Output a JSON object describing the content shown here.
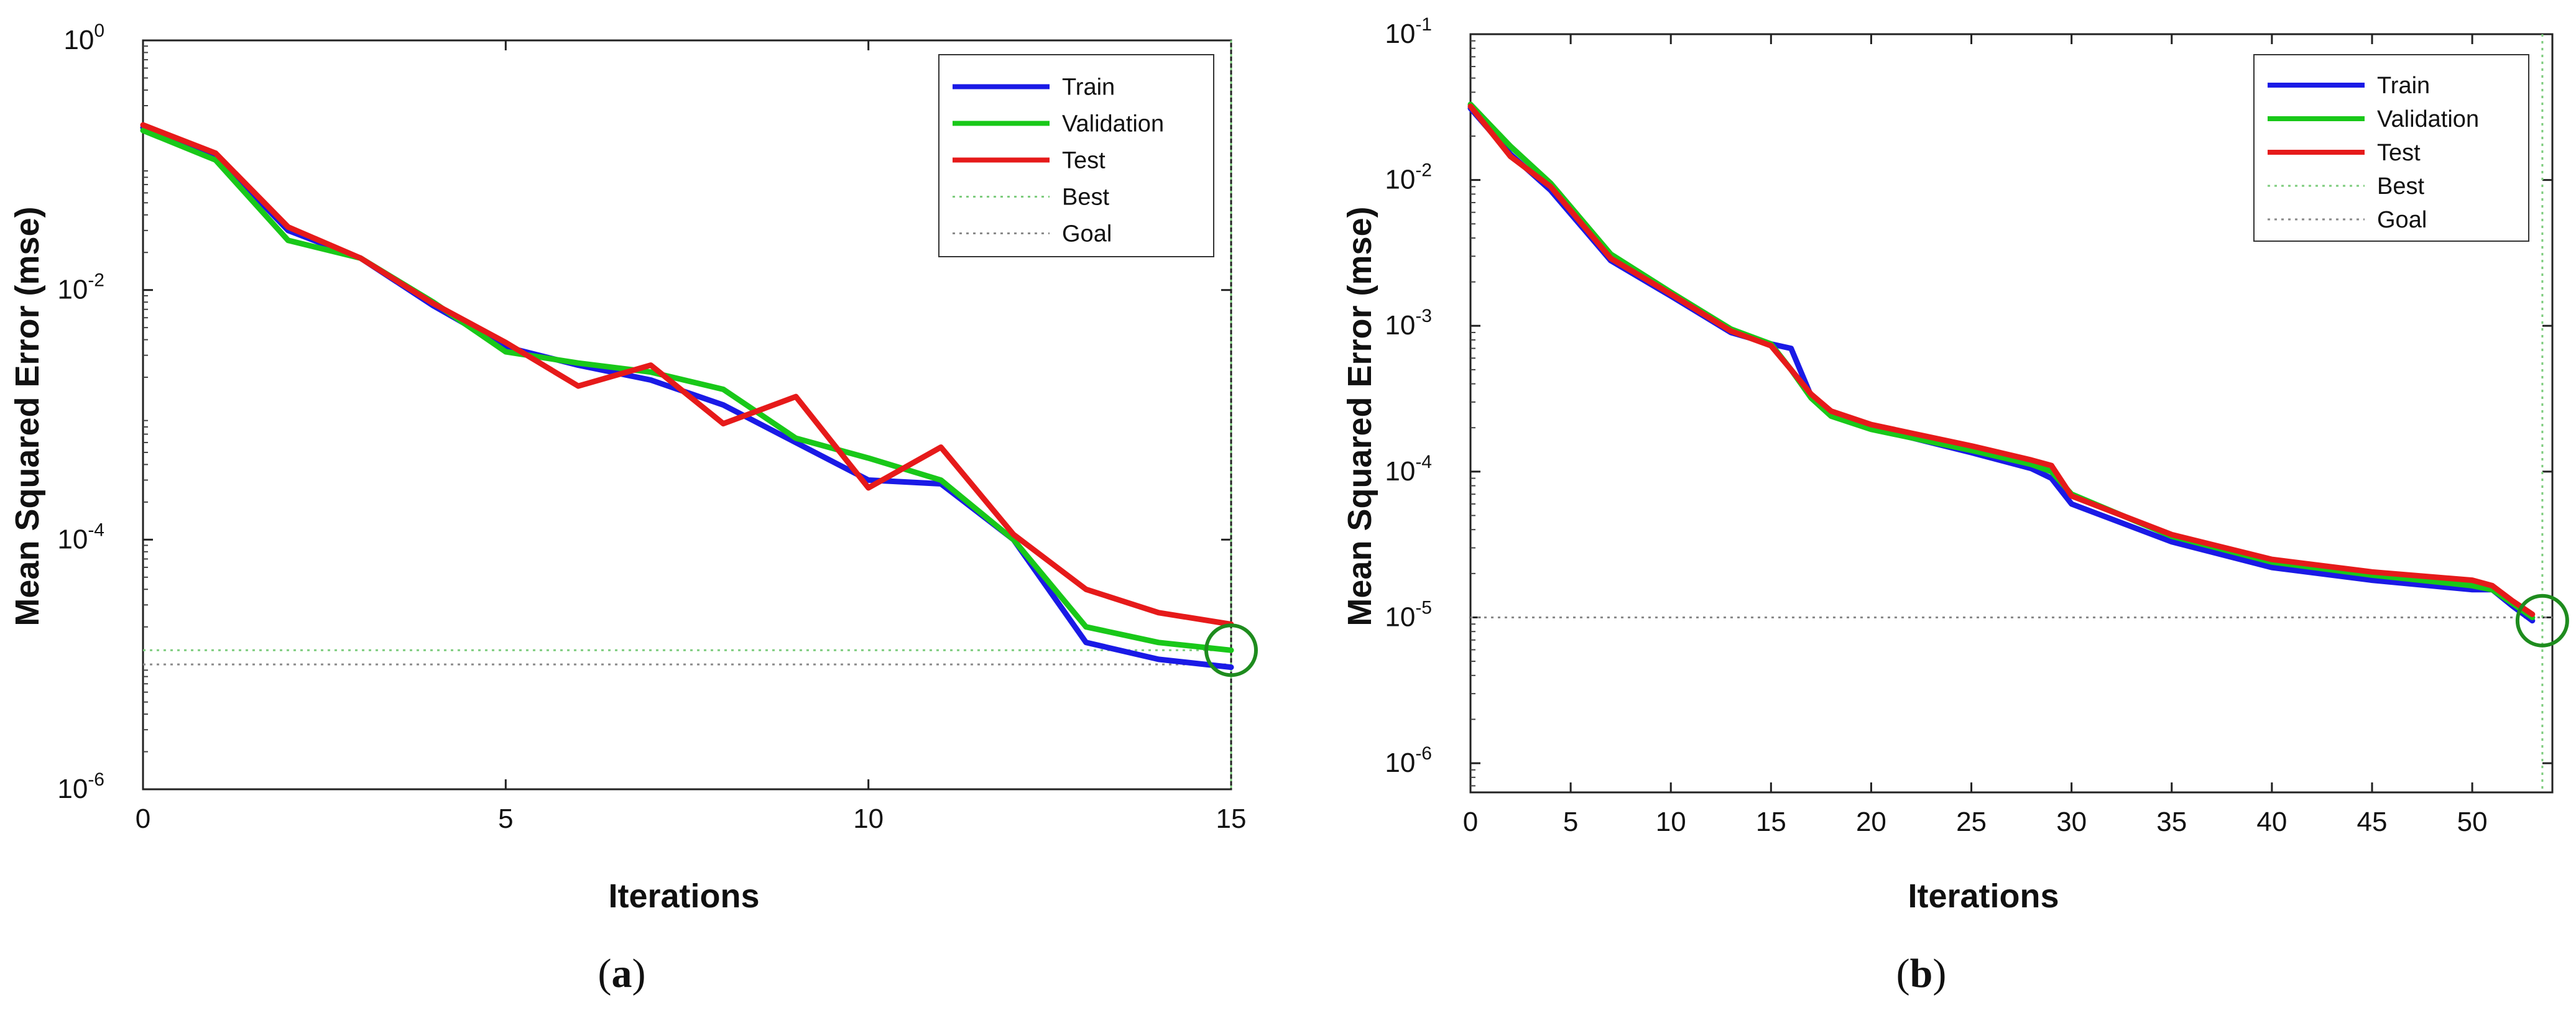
{
  "chart_data": [
    {
      "type": "line",
      "id": "a",
      "caption": {
        "open": "(",
        "letter": "a",
        "close": ")"
      },
      "xlabel": "Iterations",
      "ylabel": "Mean Squared Error  (mse)",
      "yscale": "log",
      "xlim": [
        0,
        15
      ],
      "ylim_exp": [
        -6,
        0
      ],
      "xticks": [
        0,
        5,
        10,
        15
      ],
      "yticks": [
        {
          "base": "10",
          "exp": "0",
          "value_exp": 0
        },
        {
          "base": "10",
          "exp": "-2",
          "value_exp": -2
        },
        {
          "base": "10",
          "exp": "-4",
          "value_exp": -4
        },
        {
          "base": "10",
          "exp": "-6",
          "value_exp": -6
        }
      ],
      "series": [
        {
          "name": "Train",
          "color": "#1a1ae6",
          "x": [
            0,
            1,
            2,
            3,
            4,
            5,
            6,
            7,
            8,
            9,
            10,
            11,
            12,
            13,
            14,
            15
          ],
          "y": [
            0.2,
            0.12,
            0.03,
            0.018,
            0.0075,
            0.0035,
            0.0025,
            0.0019,
            0.0012,
            0.0006,
            0.0003,
            0.00028,
            0.0001,
            1.5e-05,
            1.1e-05,
            9.5e-06
          ]
        },
        {
          "name": "Validation",
          "color": "#19c819",
          "x": [
            0,
            1,
            2,
            3,
            4,
            5,
            6,
            7,
            8,
            9,
            10,
            11,
            12,
            13,
            14,
            15
          ],
          "y": [
            0.19,
            0.11,
            0.025,
            0.018,
            0.008,
            0.0032,
            0.0026,
            0.0022,
            0.0016,
            0.00065,
            0.00045,
            0.0003,
            0.0001,
            2e-05,
            1.5e-05,
            1.3e-05
          ]
        },
        {
          "name": "Test",
          "color": "#e61a1a",
          "x": [
            0,
            1,
            2,
            3,
            4,
            5,
            6,
            7,
            8,
            9,
            10,
            11,
            12,
            13,
            14,
            15
          ],
          "y": [
            0.21,
            0.125,
            0.032,
            0.018,
            0.0078,
            0.0038,
            0.0017,
            0.0025,
            0.00085,
            0.0014,
            0.00026,
            0.00055,
            0.00011,
            4e-05,
            2.6e-05,
            2.1e-05
          ]
        }
      ],
      "reference_lines": [
        {
          "name": "Best",
          "color": "#7dcc7d",
          "y": 1.3e-05
        },
        {
          "name": "Goal",
          "color": "#8a8a8a",
          "y": 1e-05
        }
      ],
      "best_marker": {
        "x": 15,
        "y": 1.3e-05,
        "color": "#1e8c1e"
      },
      "best_vline": {
        "x": 15,
        "color": "#7dcc7d"
      },
      "legend": [
        "Train",
        "Validation",
        "Test",
        "Best",
        "Goal"
      ],
      "legend_position": "top-right"
    },
    {
      "type": "line",
      "id": "b",
      "caption": {
        "open": "(",
        "letter": "b",
        "close": ")"
      },
      "xlabel": "Iterations",
      "ylabel": "Mean Squared Error  (mse)",
      "yscale": "log",
      "xlim": [
        0,
        54
      ],
      "ylim_exp": [
        -6.2,
        -1
      ],
      "xticks": [
        0,
        5,
        10,
        15,
        20,
        25,
        30,
        35,
        40,
        45,
        50
      ],
      "yticks": [
        {
          "base": "10",
          "exp": "-1",
          "value_exp": -1
        },
        {
          "base": "10",
          "exp": "-2",
          "value_exp": -2
        },
        {
          "base": "10",
          "exp": "-3",
          "value_exp": -3
        },
        {
          "base": "10",
          "exp": "-4",
          "value_exp": -4
        },
        {
          "base": "10",
          "exp": "-5",
          "value_exp": -5
        },
        {
          "base": "10",
          "exp": "-6",
          "value_exp": -6
        }
      ],
      "series": [
        {
          "name": "Train",
          "color": "#1a1ae6",
          "x": [
            0,
            2,
            4,
            7,
            10,
            13,
            15,
            16,
            17,
            18,
            20,
            25,
            28,
            29,
            30,
            35,
            40,
            45,
            50,
            51,
            52,
            53
          ],
          "y": [
            0.031,
            0.015,
            0.0085,
            0.0028,
            0.0016,
            0.0009,
            0.00075,
            0.0007,
            0.00033,
            0.00025,
            0.0002,
            0.000135,
            0.000105,
            9e-05,
            6e-05,
            3.3e-05,
            2.2e-05,
            1.8e-05,
            1.55e-05,
            1.55e-05,
            1.2e-05,
            9.5e-06
          ]
        },
        {
          "name": "Validation",
          "color": "#19c819",
          "x": [
            0,
            2,
            4,
            7,
            10,
            13,
            15,
            16,
            17,
            18,
            20,
            25,
            28,
            29,
            30,
            35,
            40,
            45,
            50,
            51,
            52,
            53
          ],
          "y": [
            0.033,
            0.017,
            0.0095,
            0.0031,
            0.0017,
            0.00095,
            0.00075,
            0.0005,
            0.00032,
            0.00024,
            0.000195,
            0.00014,
            0.000112,
            0.0001,
            7e-05,
            3.6e-05,
            2.4e-05,
            1.95e-05,
            1.65e-05,
            1.55e-05,
            1.25e-05,
            1e-05
          ]
        },
        {
          "name": "Test",
          "color": "#e61a1a",
          "x": [
            0,
            2,
            4,
            7,
            10,
            13,
            15,
            16,
            17,
            18,
            20,
            25,
            28,
            29,
            30,
            35,
            40,
            45,
            50,
            51,
            52,
            53
          ],
          "y": [
            0.032,
            0.0145,
            0.009,
            0.0029,
            0.00165,
            0.00092,
            0.00073,
            0.0005,
            0.00034,
            0.00026,
            0.00021,
            0.00015,
            0.00012,
            0.00011,
            6.8e-05,
            3.7e-05,
            2.5e-05,
            2.05e-05,
            1.8e-05,
            1.65e-05,
            1.3e-05,
            1.05e-05
          ]
        }
      ],
      "reference_lines": [
        {
          "name": "Goal",
          "color": "#8a8a8a",
          "y": 1e-05
        }
      ],
      "best_marker": {
        "x": 53.5,
        "y": 9.5e-06,
        "color": "#1e8c1e"
      },
      "best_vline": {
        "x": 53.5,
        "color": "#7dcc7d"
      },
      "legend": [
        "Train",
        "Validation",
        "Test",
        "Best",
        "Goal"
      ],
      "legend_position": "top-right"
    }
  ]
}
